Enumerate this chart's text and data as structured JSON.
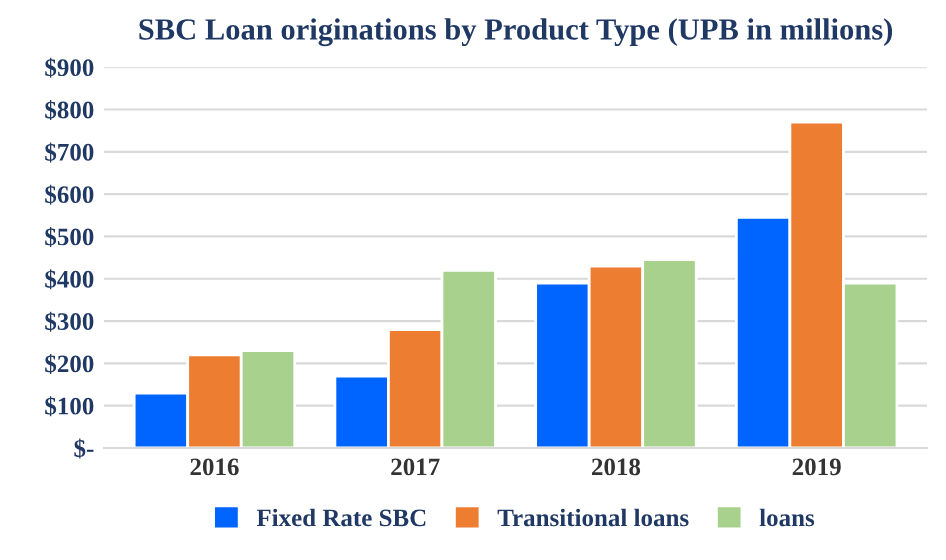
{
  "chart_data": {
    "type": "bar",
    "title": "SBC Loan originations by Product Type (UPB in millions)",
    "categories": [
      "2016",
      "2017",
      "2018",
      "2019"
    ],
    "series": [
      {
        "name": "Fixed Rate SBC",
        "color": "#0064ff",
        "values": [
          130,
          170,
          390,
          545
        ]
      },
      {
        "name": "Transitional loans",
        "color": "#ed7d31",
        "values": [
          220,
          280,
          430,
          770
        ]
      },
      {
        "name": "loans",
        "color": "#a9d18e",
        "values": [
          230,
          420,
          445,
          390
        ]
      }
    ],
    "ylim": [
      0,
      900
    ],
    "yticks": [
      {
        "value": 0,
        "label": "$-"
      },
      {
        "value": 100,
        "label": "$100"
      },
      {
        "value": 200,
        "label": "$200"
      },
      {
        "value": 300,
        "label": "$300"
      },
      {
        "value": 400,
        "label": "$400"
      },
      {
        "value": 500,
        "label": "$500"
      },
      {
        "value": 600,
        "label": "$600"
      },
      {
        "value": 700,
        "label": "$700"
      },
      {
        "value": 800,
        "label": "$800"
      },
      {
        "value": 900,
        "label": "$900"
      }
    ],
    "grid": "y",
    "legend": "bottom"
  }
}
